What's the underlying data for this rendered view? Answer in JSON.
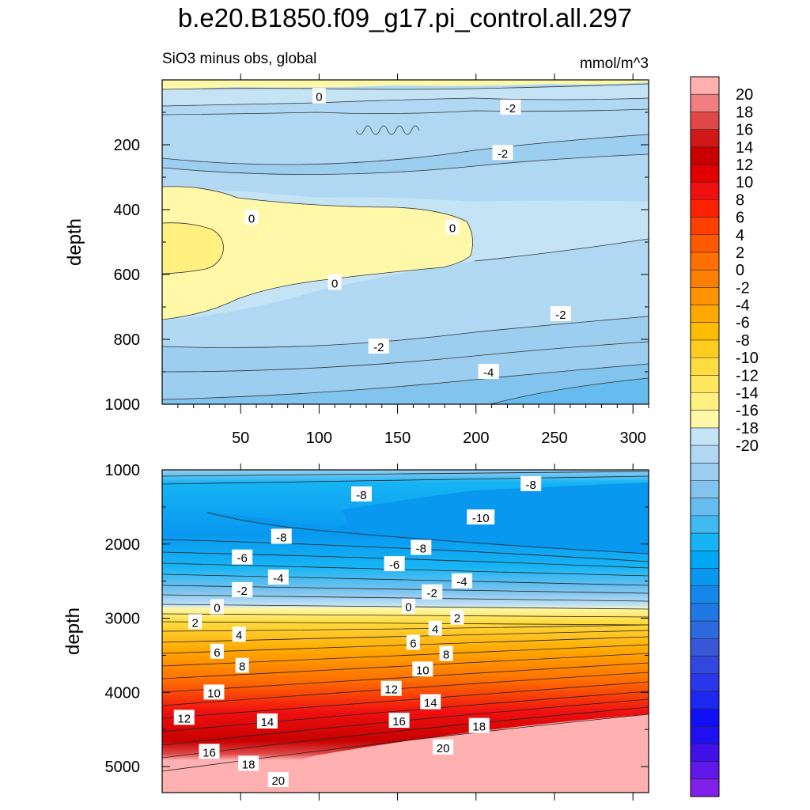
{
  "chart_data": [
    {
      "type": "contour",
      "title": "b.e20.B1850.f09_g17.pi_control.all.297",
      "subtitle_left": "SiO3 minus obs, global",
      "subtitle_right": "mmol/m^3",
      "ylabel": "depth",
      "xlim": [
        0,
        310
      ],
      "ylim": [
        1000,
        0
      ],
      "x_ticks": [
        "50",
        "100",
        "150",
        "200",
        "250",
        "300"
      ],
      "y_ticks": [
        "200",
        "400",
        "600",
        "800",
        "1000"
      ],
      "contour_labels": [
        {
          "text": "0",
          "x": 100,
          "y": 50
        },
        {
          "text": "-2",
          "x": 222,
          "y": 85
        },
        {
          "text": "-2",
          "x": 217,
          "y": 225
        },
        {
          "text": "0",
          "x": 57,
          "y": 425
        },
        {
          "text": "0",
          "x": 185,
          "y": 455
        },
        {
          "text": "0",
          "x": 110,
          "y": 625
        },
        {
          "text": "-2",
          "x": 254,
          "y": 722
        },
        {
          "text": "-2",
          "x": 138,
          "y": 822
        },
        {
          "text": "-4",
          "x": 208,
          "y": 900
        }
      ]
    },
    {
      "type": "contour",
      "ylabel": "depth",
      "xlim": [
        0,
        310
      ],
      "ylim": [
        5350,
        1000
      ],
      "y_ticks": [
        "1000",
        "2000",
        "3000",
        "4000",
        "5000"
      ],
      "contour_labels": [
        {
          "text": "-8",
          "x": 127,
          "y": 1330
        },
        {
          "text": "-8",
          "x": 235,
          "y": 1190
        },
        {
          "text": "-10",
          "x": 203,
          "y": 1640
        },
        {
          "text": "-8",
          "x": 76,
          "y": 1900
        },
        {
          "text": "-8",
          "x": 165,
          "y": 2050
        },
        {
          "text": "-6",
          "x": 51,
          "y": 2180
        },
        {
          "text": "-6",
          "x": 148,
          "y": 2270
        },
        {
          "text": "-4",
          "x": 74,
          "y": 2450
        },
        {
          "text": "-4",
          "x": 191,
          "y": 2500
        },
        {
          "text": "-2",
          "x": 51,
          "y": 2620
        },
        {
          "text": "-2",
          "x": 172,
          "y": 2650
        },
        {
          "text": "0",
          "x": 35,
          "y": 2850
        },
        {
          "text": "0",
          "x": 157,
          "y": 2840
        },
        {
          "text": "2",
          "x": 21,
          "y": 3050
        },
        {
          "text": "2",
          "x": 188,
          "y": 2990
        },
        {
          "text": "4",
          "x": 49,
          "y": 3220
        },
        {
          "text": "4",
          "x": 174,
          "y": 3140
        },
        {
          "text": "6",
          "x": 35,
          "y": 3450
        },
        {
          "text": "6",
          "x": 160,
          "y": 3330
        },
        {
          "text": "8",
          "x": 51,
          "y": 3640
        },
        {
          "text": "8",
          "x": 181,
          "y": 3480
        },
        {
          "text": "10",
          "x": 33,
          "y": 4000
        },
        {
          "text": "10",
          "x": 166,
          "y": 3690
        },
        {
          "text": "12",
          "x": 14,
          "y": 4340
        },
        {
          "text": "12",
          "x": 146,
          "y": 3950
        },
        {
          "text": "14",
          "x": 67,
          "y": 4390
        },
        {
          "text": "14",
          "x": 171,
          "y": 4130
        },
        {
          "text": "16",
          "x": 30,
          "y": 4800
        },
        {
          "text": "16",
          "x": 151,
          "y": 4380
        },
        {
          "text": "18",
          "x": 55,
          "y": 4960
        },
        {
          "text": "18",
          "x": 202,
          "y": 4450
        },
        {
          "text": "20",
          "x": 74,
          "y": 5180
        },
        {
          "text": "20",
          "x": 179,
          "y": 4740
        }
      ]
    },
    {
      "type": "colorbar",
      "labels": [
        "20",
        "18",
        "16",
        "14",
        "12",
        "10",
        "8",
        "6",
        "4",
        "2",
        "0",
        "-2",
        "-4",
        "-6",
        "-8",
        "-10",
        "-12",
        "-14",
        "-16",
        "-18",
        "-20"
      ],
      "colors": [
        "#ffb0b0",
        "#f08080",
        "#e04848",
        "#d01818",
        "#c80000",
        "#e00000",
        "#f01010",
        "#ff2000",
        "#ff4000",
        "#ff5a00",
        "#ff7000",
        "#ff8000",
        "#ff9400",
        "#ffa800",
        "#ffbc00",
        "#ffcc20",
        "#ffdc40",
        "#ffe860",
        "#fff080",
        "#fff8a8",
        "#c4e4f6",
        "#b0d8f2",
        "#9ccef0",
        "#82c4ee",
        "#66bcee",
        "#40b8f0",
        "#16b4f4",
        "#00a8f4",
        "#0898f0",
        "#1488ea",
        "#2078e4",
        "#2c68de",
        "#3858d8",
        "#3048e0",
        "#2838e8",
        "#1c28f0",
        "#1010f8",
        "#2010f0",
        "#4010e8",
        "#6018e8",
        "#8020e8"
      ]
    }
  ]
}
